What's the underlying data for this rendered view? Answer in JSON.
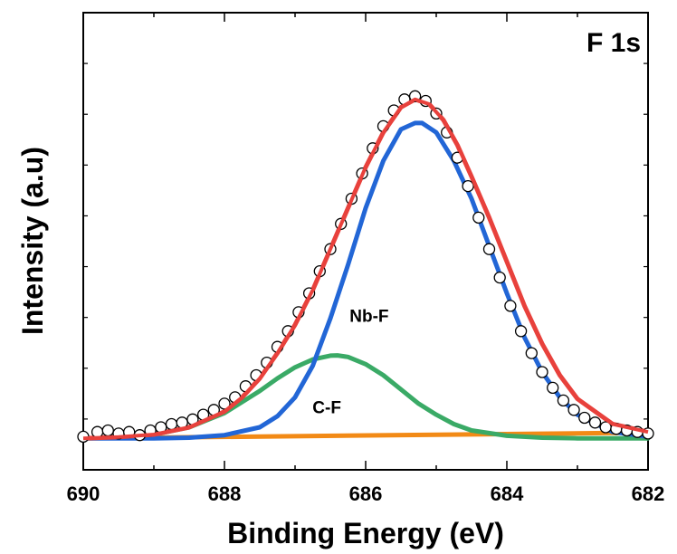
{
  "chart_data": {
    "type": "line",
    "title": "",
    "panel_label": "F 1s",
    "xlabel": "Binding Energy (eV)",
    "ylabel": "Intensity (a.u)",
    "xlim": [
      690,
      682
    ],
    "x_reversed": true,
    "x_ticks": [
      690,
      688,
      686,
      684,
      682
    ],
    "ylim": [
      -0.1,
      1.35
    ],
    "y_tick_labels_shown": false,
    "grid": false,
    "legend": "none",
    "annotations": [
      {
        "text": "Nb-F",
        "x": 685.95,
        "y": 0.37
      },
      {
        "text": "C-F",
        "x": 686.55,
        "y": 0.08
      }
    ],
    "series": [
      {
        "name": "",
        "kind": "scatter",
        "marker": "open-circle",
        "color": "#000000",
        "x": [
          690.0,
          689.8,
          689.65,
          689.5,
          689.35,
          689.2,
          689.05,
          688.9,
          688.75,
          688.6,
          688.45,
          688.3,
          688.15,
          688.0,
          687.85,
          687.7,
          687.55,
          687.4,
          687.25,
          687.1,
          686.95,
          686.8,
          686.65,
          686.5,
          686.35,
          686.2,
          686.05,
          685.9,
          685.75,
          685.6,
          685.45,
          685.3,
          685.15,
          685.0,
          684.85,
          684.7,
          684.55,
          684.4,
          684.25,
          684.1,
          683.95,
          683.8,
          683.65,
          683.5,
          683.35,
          683.2,
          683.05,
          682.9,
          682.75,
          682.6,
          682.45,
          682.3,
          682.15,
          682.0
        ],
        "y": [
          0.005,
          0.02,
          0.025,
          0.015,
          0.02,
          0.01,
          0.025,
          0.035,
          0.045,
          0.05,
          0.06,
          0.075,
          0.09,
          0.11,
          0.13,
          0.165,
          0.2,
          0.24,
          0.29,
          0.34,
          0.4,
          0.46,
          0.53,
          0.6,
          0.68,
          0.76,
          0.84,
          0.92,
          0.99,
          1.04,
          1.075,
          1.085,
          1.07,
          1.03,
          0.97,
          0.89,
          0.8,
          0.7,
          0.6,
          0.51,
          0.42,
          0.34,
          0.27,
          0.21,
          0.16,
          0.12,
          0.09,
          0.065,
          0.05,
          0.035,
          0.03,
          0.025,
          0.02,
          0.015
        ]
      },
      {
        "name": "",
        "kind": "line",
        "color": "#e8413c",
        "x": [
          690.0,
          689.5,
          689.0,
          688.5,
          688.0,
          687.75,
          687.5,
          687.25,
          687.0,
          686.75,
          686.5,
          686.25,
          686.0,
          685.75,
          685.5,
          685.3,
          685.1,
          684.9,
          684.7,
          684.5,
          684.25,
          684.0,
          683.75,
          683.5,
          683.25,
          683.0,
          682.5,
          682.0
        ],
        "y": [
          0.0,
          0.004,
          0.012,
          0.035,
          0.085,
          0.13,
          0.19,
          0.27,
          0.36,
          0.47,
          0.6,
          0.73,
          0.86,
          0.97,
          1.05,
          1.075,
          1.06,
          1.01,
          0.93,
          0.83,
          0.7,
          0.56,
          0.42,
          0.3,
          0.2,
          0.125,
          0.045,
          0.02
        ]
      },
      {
        "name": "",
        "kind": "line",
        "color": "#2266d6",
        "x": [
          690.0,
          689.0,
          688.5,
          688.0,
          687.5,
          687.25,
          687.0,
          686.75,
          686.5,
          686.25,
          686.0,
          685.75,
          685.5,
          685.3,
          685.2,
          685.0,
          684.75,
          684.5,
          684.25,
          684.0,
          683.75,
          683.5,
          683.25,
          683.0,
          682.5,
          682.0
        ],
        "y": [
          0.0,
          0.0,
          0.002,
          0.01,
          0.035,
          0.07,
          0.13,
          0.23,
          0.38,
          0.55,
          0.73,
          0.88,
          0.98,
          1.0,
          1.0,
          0.97,
          0.88,
          0.76,
          0.61,
          0.46,
          0.32,
          0.21,
          0.13,
          0.075,
          0.02,
          0.005
        ]
      },
      {
        "name": "",
        "kind": "line",
        "color": "#3aaa66",
        "x": [
          690.0,
          689.5,
          689.0,
          688.5,
          688.0,
          687.5,
          687.25,
          687.0,
          686.75,
          686.5,
          686.4,
          686.25,
          686.0,
          685.75,
          685.5,
          685.25,
          685.0,
          684.75,
          684.5,
          684.0,
          683.5,
          683.0,
          682.0
        ],
        "y": [
          0.0,
          0.002,
          0.012,
          0.035,
          0.08,
          0.15,
          0.19,
          0.225,
          0.25,
          0.262,
          0.263,
          0.258,
          0.235,
          0.2,
          0.155,
          0.11,
          0.075,
          0.045,
          0.025,
          0.008,
          0.002,
          0.0,
          0.0
        ]
      },
      {
        "name": "",
        "kind": "line",
        "color": "#f28a16",
        "x": [
          690.0,
          682.0
        ],
        "y": [
          0.0,
          0.018
        ]
      }
    ]
  }
}
